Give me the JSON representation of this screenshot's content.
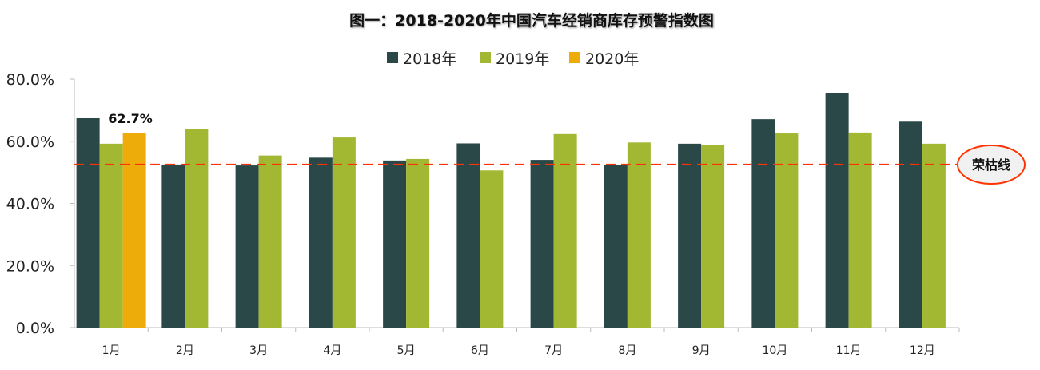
{
  "chart_data": {
    "type": "bar",
    "title": "图一：2018-2020年中国汽车经销商库存预警指数图",
    "categories": [
      "1月",
      "2月",
      "3月",
      "4月",
      "5月",
      "6月",
      "7月",
      "8月",
      "9月",
      "10月",
      "11月",
      "12月"
    ],
    "series": [
      {
        "name": "2018年",
        "color": "#2a4848",
        "values": [
          67.4,
          52.5,
          52.2,
          54.7,
          53.8,
          59.3,
          54.0,
          52.3,
          59.2,
          67.1,
          75.5,
          66.3
        ]
      },
      {
        "name": "2019年",
        "color": "#a3b832",
        "values": [
          59.2,
          63.8,
          55.4,
          61.2,
          54.3,
          50.6,
          62.3,
          59.6,
          58.9,
          62.5,
          62.8,
          59.2
        ]
      },
      {
        "name": "2020年",
        "color": "#edac0a",
        "values": [
          62.7,
          null,
          null,
          null,
          null,
          null,
          null,
          null,
          null,
          null,
          null,
          null
        ]
      }
    ],
    "data_labels": [
      {
        "series": "2020年",
        "category": "1月",
        "text": "62.7%"
      }
    ],
    "ylim": [
      0,
      80
    ],
    "yticks": [
      "0.0%",
      "20.0%",
      "40.0%",
      "60.0%",
      "80.0%"
    ],
    "reference_line": {
      "value": 52.5,
      "label": "荣枯线",
      "color": "#ff3300",
      "style": "dashed"
    },
    "legend": "top",
    "grid": false
  }
}
